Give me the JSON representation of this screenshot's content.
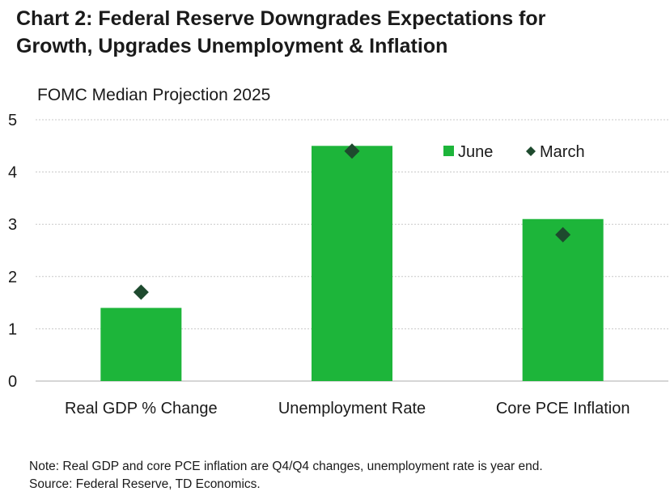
{
  "title_line1": "Chart 2: Federal Reserve Downgrades Expectations for",
  "title_line2": "Growth, Upgrades Unemployment & Inflation",
  "note": "Note: Real GDP and core PCE inflation are Q4/Q4 changes, unemployment rate is year end.",
  "source": "Source: Federal Reserve, TD Economics.",
  "chart_data": {
    "type": "bar",
    "title": "FOMC Median Projection 2025",
    "categories": [
      "Real GDP % Change",
      "Unemployment Rate",
      "Core PCE Inflation"
    ],
    "series": [
      {
        "name": "June",
        "kind": "bar",
        "color": "#1db53a",
        "values": [
          1.4,
          4.5,
          3.1
        ]
      },
      {
        "name": "March",
        "kind": "marker",
        "marker": "diamond",
        "color": "#1e4a2e",
        "values": [
          1.7,
          4.4,
          2.8
        ]
      }
    ],
    "ylim": [
      0,
      5
    ],
    "yticks": [
      0,
      1,
      2,
      3,
      4,
      5
    ],
    "grid": true,
    "legend_position": "top-right"
  }
}
